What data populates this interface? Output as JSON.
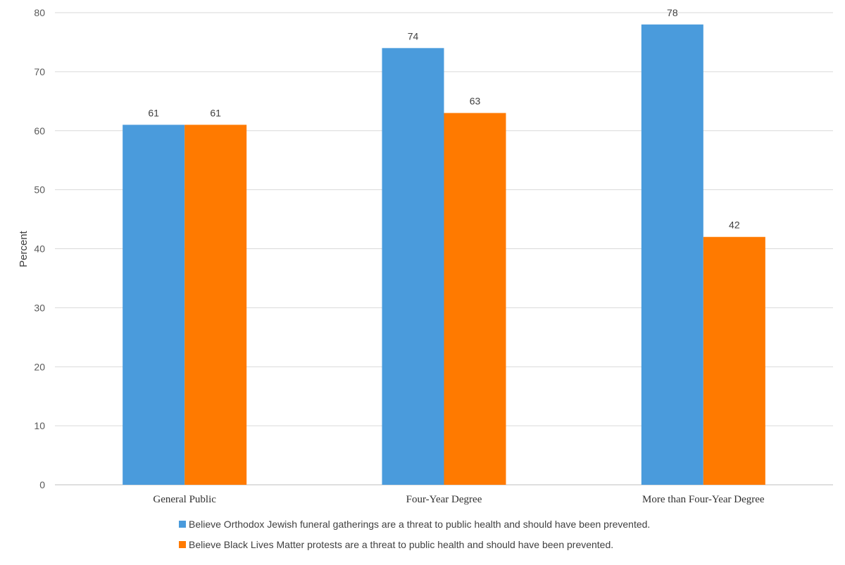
{
  "chart_data": {
    "type": "bar",
    "title": "",
    "xlabel": "",
    "ylabel": "Percent",
    "ylim": [
      0,
      80
    ],
    "yticks": [
      0,
      10,
      20,
      30,
      40,
      50,
      60,
      70,
      80
    ],
    "grid": true,
    "legend_position": "bottom",
    "categories": [
      "General Public",
      "Four-Year Degree",
      "More than Four-Year Degree"
    ],
    "series": [
      {
        "name": "Believe Orthodox Jewish funeral gatherings are a threat to public health and should have been prevented.",
        "color": "#4A9BDC",
        "values": [
          61,
          74,
          78
        ]
      },
      {
        "name": "Believe Black Lives Matter protests are a threat to public health and should have been prevented.",
        "color": "#FF7A00",
        "values": [
          61,
          63,
          42
        ]
      }
    ]
  }
}
